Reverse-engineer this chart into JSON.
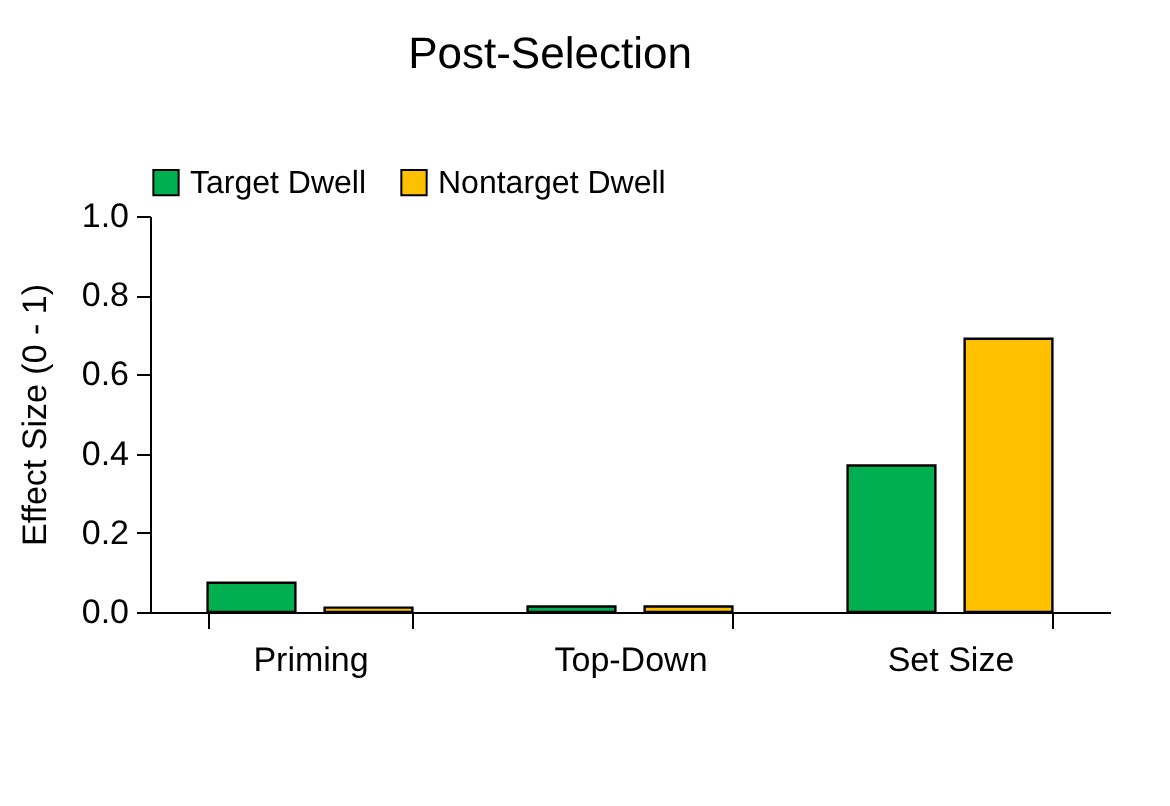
{
  "chart_data": {
    "type": "bar",
    "title": "Post-Selection",
    "ylabel": "Effect Size (0 - 1)",
    "categories": [
      "Priming",
      "Top-Down",
      "Set Size"
    ],
    "series": [
      {
        "name": "Target Dwell",
        "color": "#00b050",
        "values": [
          0.074,
          0.014,
          0.37
        ]
      },
      {
        "name": "Nontarget Dwell",
        "color": "#ffc000",
        "values": [
          0.011,
          0.014,
          0.69
        ]
      }
    ],
    "ylim": [
      0,
      1
    ],
    "yticks": [
      {
        "value": 0,
        "label": "0.0"
      },
      {
        "value": 0.2,
        "label": "0.2"
      },
      {
        "value": 0.4,
        "label": "0.4"
      },
      {
        "value": 0.6,
        "label": "0.6"
      },
      {
        "value": 0.8,
        "label": "0.8"
      },
      {
        "value": 1,
        "label": "1.0"
      }
    ],
    "grid": false,
    "legend": "top"
  }
}
